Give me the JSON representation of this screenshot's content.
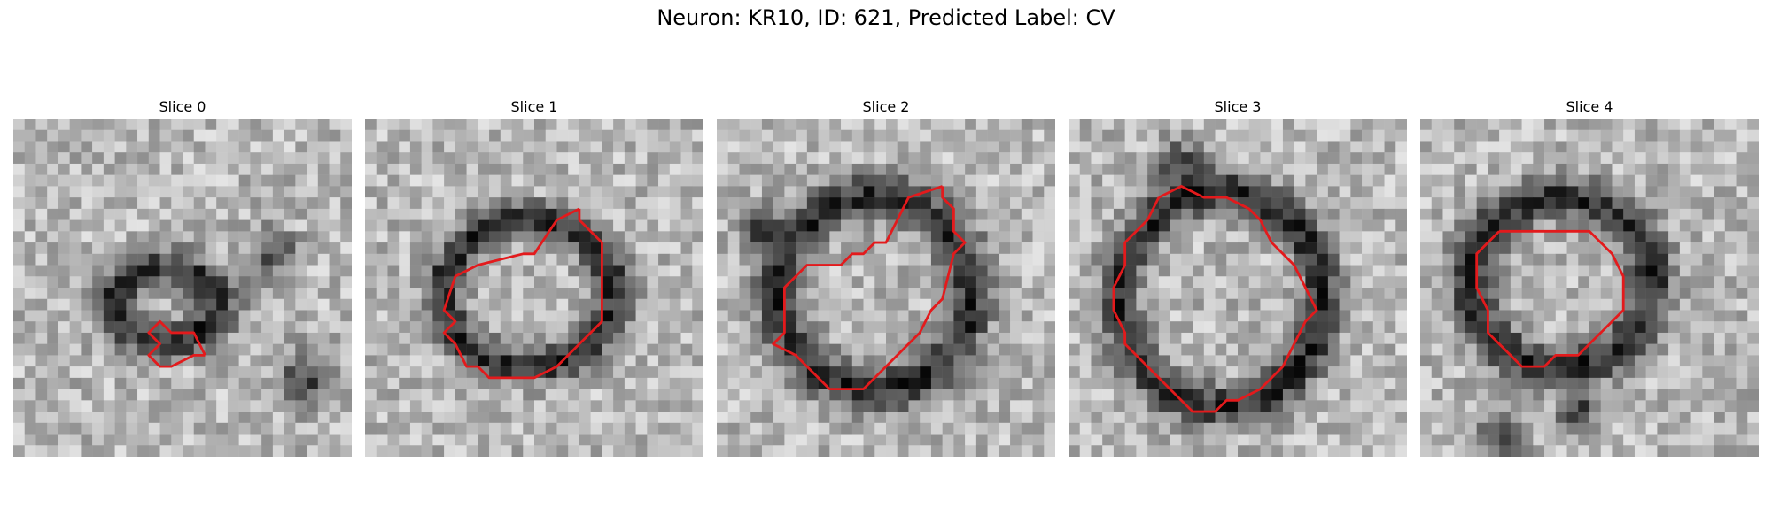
{
  "figure": {
    "title": "Neuron: KR10, ID: 621, Predicted Label: CV"
  },
  "colors": {
    "contour": "#e31a1c",
    "background": "#ffffff"
  },
  "panels": [
    {
      "title": "Slice 0",
      "contour": [
        [
          17,
          21
        ],
        [
          16,
          19
        ],
        [
          14,
          19
        ],
        [
          13,
          18
        ],
        [
          12,
          19
        ],
        [
          13,
          20
        ],
        [
          12,
          21
        ],
        [
          13,
          22
        ],
        [
          14,
          22
        ],
        [
          16,
          21
        ]
      ]
    },
    {
      "title": "Slice 1",
      "contour": [
        [
          19,
          8
        ],
        [
          17,
          9
        ],
        [
          15,
          12
        ],
        [
          14,
          12
        ],
        [
          10,
          13
        ],
        [
          8,
          14
        ],
        [
          7,
          17
        ],
        [
          8,
          18
        ],
        [
          7,
          19
        ],
        [
          8,
          20
        ],
        [
          9,
          22
        ],
        [
          10,
          22
        ],
        [
          11,
          23
        ],
        [
          12,
          23
        ],
        [
          15,
          23
        ],
        [
          17,
          22
        ],
        [
          19,
          20
        ],
        [
          21,
          18
        ],
        [
          21,
          11
        ],
        [
          20,
          10
        ],
        [
          19,
          9
        ]
      ]
    },
    {
      "title": "Slice 2",
      "contour": [
        [
          20,
          6
        ],
        [
          17,
          7
        ],
        [
          16,
          9
        ],
        [
          15,
          11
        ],
        [
          14,
          11
        ],
        [
          13,
          12
        ],
        [
          12,
          12
        ],
        [
          11,
          13
        ],
        [
          8,
          13
        ],
        [
          6,
          15
        ],
        [
          6,
          19
        ],
        [
          5,
          20
        ],
        [
          7,
          21
        ],
        [
          8,
          22
        ],
        [
          9,
          23
        ],
        [
          10,
          24
        ],
        [
          11,
          24
        ],
        [
          13,
          24
        ],
        [
          14,
          23
        ],
        [
          15,
          22
        ],
        [
          16,
          21
        ],
        [
          17,
          20
        ],
        [
          18,
          19
        ],
        [
          19,
          17
        ],
        [
          20,
          16
        ],
        [
          21,
          12
        ],
        [
          22,
          11
        ],
        [
          21,
          10
        ],
        [
          21,
          8
        ],
        [
          20,
          7
        ]
      ]
    },
    {
      "title": "Slice 3",
      "contour": [
        [
          8,
          7
        ],
        [
          7,
          9
        ],
        [
          6,
          10
        ],
        [
          5,
          11
        ],
        [
          5,
          13
        ],
        [
          4,
          15
        ],
        [
          4,
          17
        ],
        [
          5,
          19
        ],
        [
          5,
          20
        ],
        [
          6,
          21
        ],
        [
          7,
          22
        ],
        [
          8,
          23
        ],
        [
          9,
          24
        ],
        [
          10,
          25
        ],
        [
          11,
          26
        ],
        [
          13,
          26
        ],
        [
          14,
          25
        ],
        [
          15,
          25
        ],
        [
          17,
          24
        ],
        [
          18,
          23
        ],
        [
          19,
          22
        ],
        [
          20,
          20
        ],
        [
          21,
          18
        ],
        [
          22,
          17
        ],
        [
          21,
          15
        ],
        [
          20,
          13
        ],
        [
          19,
          12
        ],
        [
          18,
          11
        ],
        [
          17,
          9
        ],
        [
          16,
          8
        ],
        [
          14,
          7
        ],
        [
          12,
          7
        ],
        [
          10,
          6
        ]
      ]
    },
    {
      "title": "Slice 4",
      "contour": [
        [
          7,
          10
        ],
        [
          5,
          12
        ],
        [
          5,
          15
        ],
        [
          6,
          17
        ],
        [
          6,
          19
        ],
        [
          7,
          20
        ],
        [
          8,
          21
        ],
        [
          9,
          22
        ],
        [
          11,
          22
        ],
        [
          12,
          21
        ],
        [
          14,
          21
        ],
        [
          15,
          20
        ],
        [
          16,
          19
        ],
        [
          17,
          18
        ],
        [
          18,
          17
        ],
        [
          18,
          14
        ],
        [
          17,
          12
        ],
        [
          16,
          11
        ],
        [
          15,
          10
        ],
        [
          13,
          10
        ],
        [
          12,
          10
        ],
        [
          10,
          10
        ],
        [
          8,
          10
        ]
      ]
    }
  ]
}
